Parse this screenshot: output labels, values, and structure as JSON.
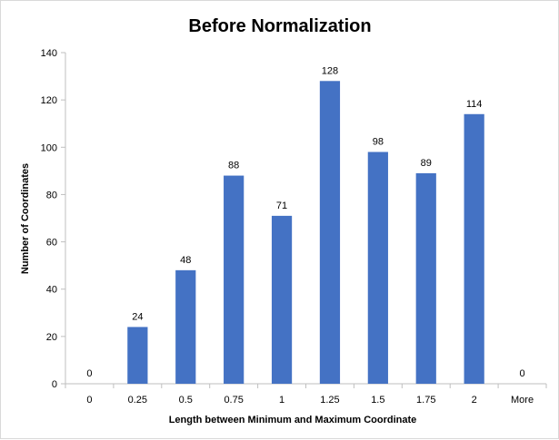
{
  "chart_data": {
    "type": "bar",
    "title": "Before Normalization",
    "xlabel": "Length between Minimum and Maximum Coordinate",
    "ylabel": "Number of Coordinates",
    "categories": [
      "0",
      "0.25",
      "0.5",
      "0.75",
      "1",
      "1.25",
      "1.5",
      "1.75",
      "2",
      "More"
    ],
    "values": [
      0,
      24,
      48,
      88,
      71,
      128,
      98,
      89,
      114,
      0
    ],
    "data_labels": [
      "0",
      "24",
      "48",
      "88",
      "71",
      "128",
      "98",
      "89",
      "114",
      "0"
    ],
    "ylim": [
      0,
      140
    ],
    "yticks": [
      0,
      20,
      40,
      60,
      80,
      100,
      120,
      140
    ],
    "ytick_labels": [
      "0",
      "20",
      "40",
      "60",
      "80",
      "100",
      "120",
      "140"
    ],
    "grid": false,
    "legend": "none",
    "colors": {
      "bar": "#4472c4",
      "axis": "#bfbfbf",
      "frame": "#d9d9d9"
    }
  }
}
